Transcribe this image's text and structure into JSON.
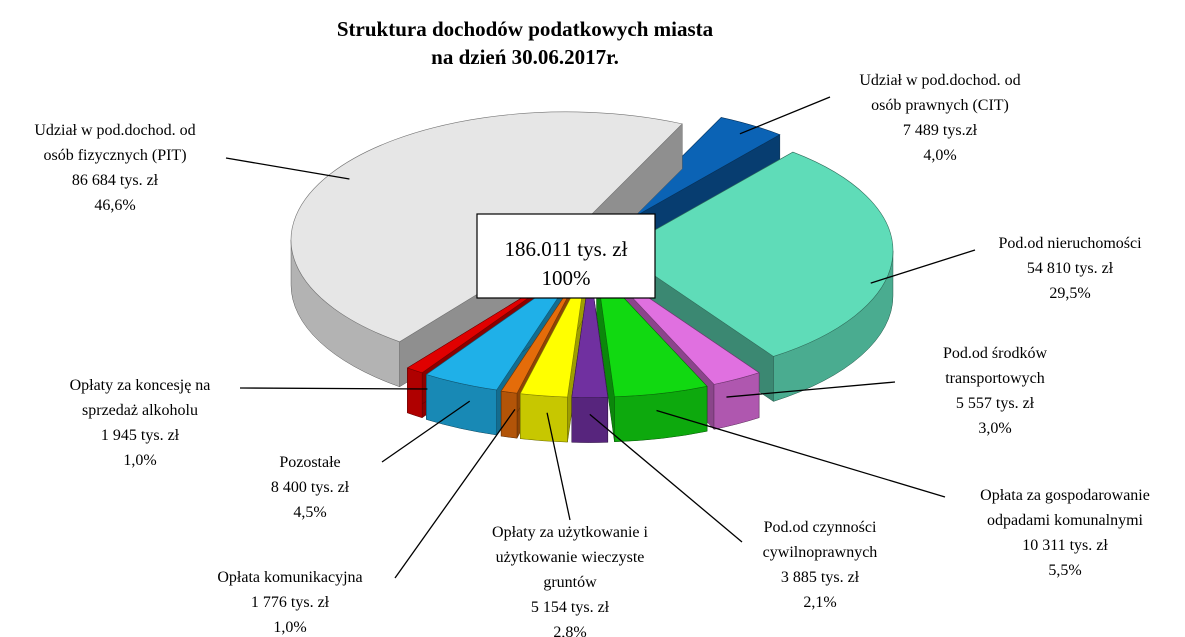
{
  "chart_data": {
    "type": "pie",
    "title": "Struktura dochodów podatkowych miasta\nna dzień 30.06.2017r.",
    "total": "186.011 tys. zł",
    "total_share": "100%",
    "categories": [
      "Udział w pod.dochod. od\nosób prawnych (CIT)",
      "Pod.od nieruchomości",
      "Pod.od środków\ntransportowych",
      "Opłata za gospodarowanie\nodpadami komunalnymi",
      "Pod.od czynności\ncywilnoprawnych",
      "Opłaty za użytkowanie i\nużytkowanie wieczyste\ngruntów",
      "Opłata komunikacyjna",
      "Pozostałe",
      "Opłaty za koncesję na\nsprzedaż alkoholu",
      "Udział w pod.dochod. od\nosób fizycznych (PIT)"
    ],
    "values": [
      7489,
      54810,
      5557,
      10311,
      3885,
      5154,
      1776,
      8400,
      1945,
      86684
    ],
    "value_labels": [
      "7 489 tys.zł",
      "54 810 tys. zł",
      "5 557 tys. zł",
      "10 311 tys. zł",
      "3 885 tys. zł",
      "5 154 tys. zł",
      "1 776 tys. zł",
      "8 400 tys. zł",
      "1 945 tys. zł",
      "86 684 tys. zł"
    ],
    "shares": [
      4.0,
      29.5,
      3.0,
      5.5,
      2.1,
      2.8,
      1.0,
      4.5,
      1.0,
      46.6
    ],
    "share_labels": [
      "4,0%",
      "29,5%",
      "3,0%",
      "5,5%",
      "2,1%",
      "2,8%",
      "1,0%",
      "4,5%",
      "1,0%",
      "46,6%"
    ],
    "colors": [
      "#0b63b5",
      "#5fdcb8",
      "#e070e0",
      "#11d911",
      "#7030a0",
      "#ffff00",
      "#e46c0a",
      "#1fb0e8",
      "#e00000",
      "#e6e6e6"
    ]
  }
}
